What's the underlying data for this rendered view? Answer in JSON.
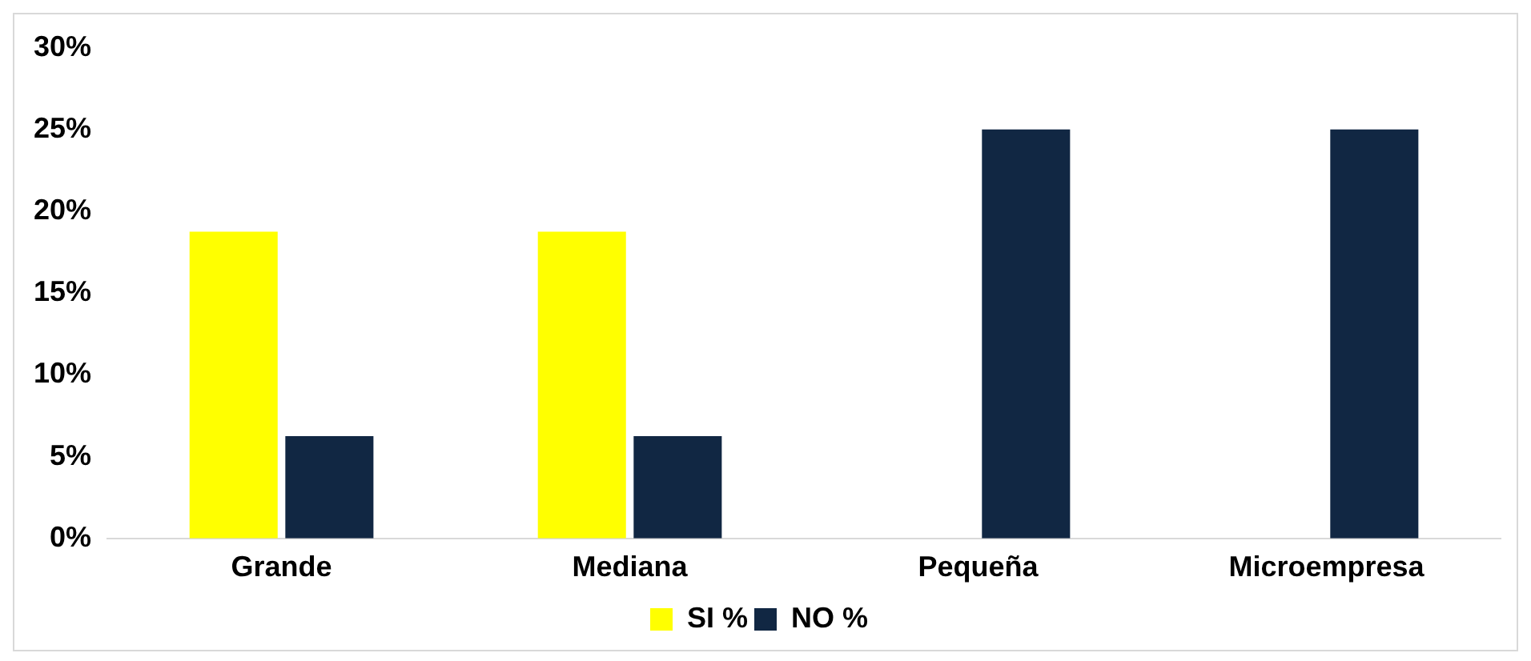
{
  "chart_data": {
    "type": "bar",
    "categories": [
      "Grande",
      "Mediana",
      "Pequeña",
      "Microempresa"
    ],
    "series": [
      {
        "name": "SI %",
        "color": "#ffff00",
        "values": [
          18.75,
          18.75,
          0,
          0
        ]
      },
      {
        "name": "NO %",
        "color": "#112743",
        "values": [
          6.25,
          6.25,
          25,
          25
        ]
      }
    ],
    "ylim": [
      0,
      30
    ],
    "yticks": [
      {
        "value": 0,
        "label": "0%"
      },
      {
        "value": 5,
        "label": "5%"
      },
      {
        "value": 10,
        "label": "10%"
      },
      {
        "value": 15,
        "label": "15%"
      },
      {
        "value": 20,
        "label": "20%"
      },
      {
        "value": 25,
        "label": "25%"
      },
      {
        "value": 30,
        "label": "30%"
      }
    ],
    "grid": false,
    "legend": "bottom"
  }
}
